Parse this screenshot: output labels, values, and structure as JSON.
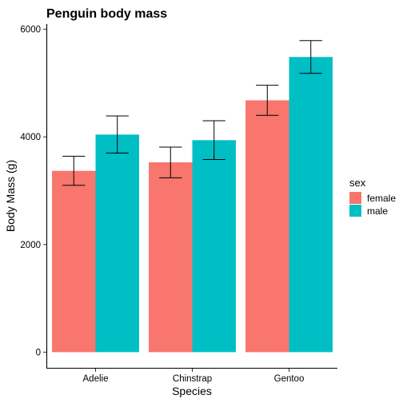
{
  "chart_data": {
    "type": "bar",
    "title": "Penguin body mass",
    "xlabel": "Species",
    "ylabel": "Body Mass (g)",
    "categories": [
      "Adelie",
      "Chinstrap",
      "Gentoo"
    ],
    "ylim": [
      0,
      6000
    ],
    "yticks": [
      0,
      2000,
      4000,
      6000
    ],
    "grid": false,
    "legend": {
      "title": "sex",
      "position": "right"
    },
    "series": [
      {
        "name": "female",
        "color": "#F8766D",
        "values": [
          3369,
          3527,
          4680
        ],
        "error_low": [
          3100,
          3240,
          4400
        ],
        "error_high": [
          3640,
          3810,
          4960
        ]
      },
      {
        "name": "male",
        "color": "#00BFC4",
        "values": [
          4043,
          3939,
          5485
        ],
        "error_low": [
          3700,
          3580,
          5180
        ],
        "error_high": [
          4390,
          4300,
          5790
        ]
      }
    ]
  }
}
